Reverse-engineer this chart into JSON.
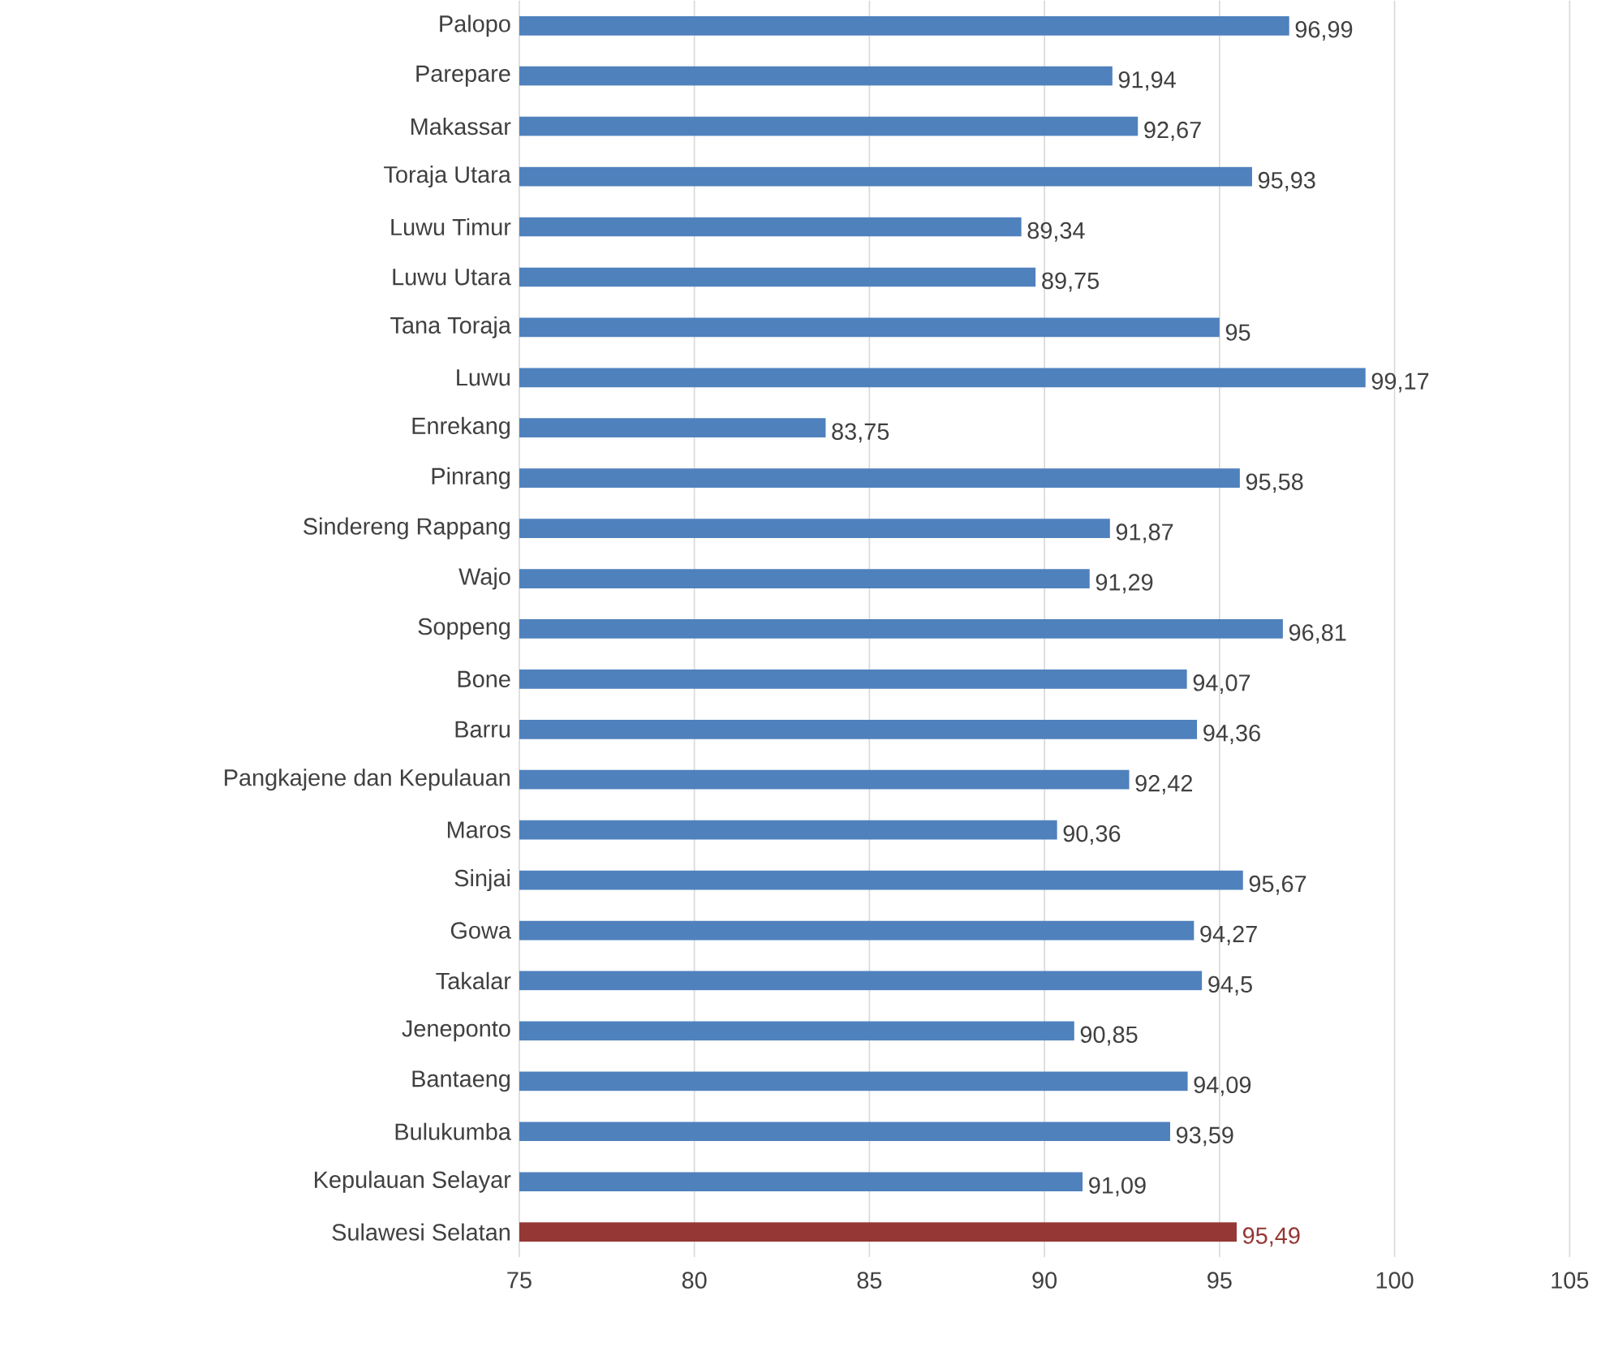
{
  "chart_data": {
    "type": "bar",
    "orientation": "horizontal",
    "categories": [
      "Palopo",
      "Parepare",
      "Makassar",
      "Toraja Utara",
      "Luwu Timur",
      "Luwu Utara",
      "Tana Toraja",
      "Luwu",
      "Enrekang",
      "Pinrang",
      "Sindereng Rappang",
      "Wajo",
      "Soppeng",
      "Bone",
      "Barru",
      "Pangkajene dan Kepulauan",
      "Maros",
      "Sinjai",
      "Gowa",
      "Takalar",
      "Jeneponto",
      "Bantaeng",
      "Bulukumba",
      "Kepulauan Selayar",
      "Sulawesi Selatan"
    ],
    "values": [
      96.99,
      91.94,
      92.67,
      95.93,
      89.34,
      89.75,
      95,
      99.17,
      83.75,
      95.58,
      91.87,
      91.29,
      96.81,
      94.07,
      94.36,
      92.42,
      90.36,
      95.67,
      94.27,
      94.5,
      90.85,
      94.09,
      93.59,
      91.09,
      95.49
    ],
    "value_labels": [
      "96,99",
      "91,94",
      "92,67",
      "95,93",
      "89,34",
      "89,75",
      "95",
      "99,17",
      "83,75",
      "95,58",
      "91,87",
      "91,29",
      "96,81",
      "94,07",
      "94,36",
      "92,42",
      "90,36",
      "95,67",
      "94,27",
      "94,5",
      "90,85",
      "94,09",
      "93,59",
      "91,09",
      "95,49"
    ],
    "colors": [
      "#4f81bd",
      "#4f81bd",
      "#4f81bd",
      "#4f81bd",
      "#4f81bd",
      "#4f81bd",
      "#4f81bd",
      "#4f81bd",
      "#4f81bd",
      "#4f81bd",
      "#4f81bd",
      "#4f81bd",
      "#4f81bd",
      "#4f81bd",
      "#4f81bd",
      "#4f81bd",
      "#4f81bd",
      "#4f81bd",
      "#4f81bd",
      "#4f81bd",
      "#4f81bd",
      "#4f81bd",
      "#4f81bd",
      "#4f81bd",
      "#953735"
    ],
    "xlim": [
      75,
      105
    ],
    "xticks": [
      75,
      80,
      85,
      90,
      95,
      100,
      105
    ],
    "grid": "x"
  }
}
